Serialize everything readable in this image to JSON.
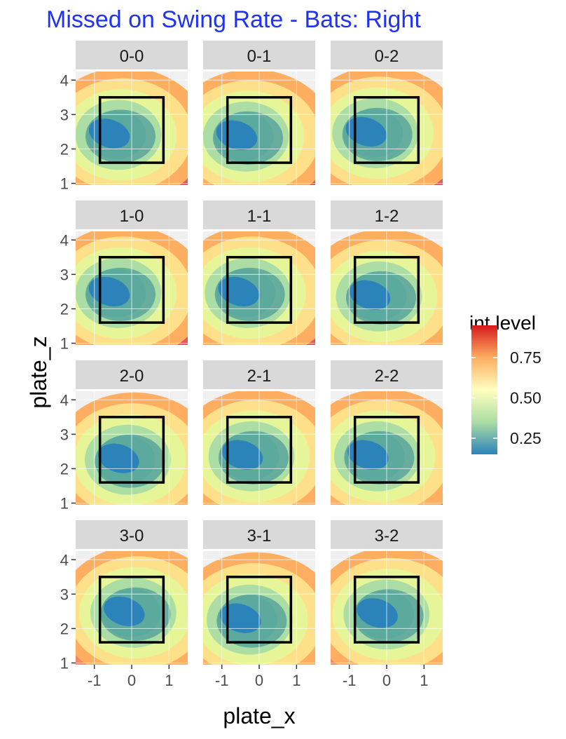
{
  "chart_data": {
    "type": "heatmap",
    "title": "Missed on Swing Rate - Bats: Right",
    "xlabel": "plate_x",
    "ylabel": "plate_z",
    "xlim": [
      -1.5,
      1.5
    ],
    "ylim": [
      0.95,
      4.25
    ],
    "x_ticks": [
      -1,
      0,
      1
    ],
    "y_ticks": [
      1,
      2,
      3,
      4
    ],
    "strike_zone": {
      "x": [
        -0.85,
        0.85
      ],
      "z": [
        1.6,
        3.5
      ]
    },
    "legend": {
      "title": "int.level",
      "position": "right",
      "range": [
        0.15,
        0.95
      ],
      "ticks": [
        0.25,
        0.5,
        0.75
      ],
      "tick_labels": [
        "0.25",
        "0.50",
        "0.75"
      ],
      "colors": [
        "#2b83ba",
        "#abdda4",
        "#ffffbf",
        "#fdae61",
        "#d7191c"
      ]
    },
    "facets": [
      {
        "label": "0-0",
        "hot_spot": {
          "x": -0.6,
          "z": 2.45
        }
      },
      {
        "label": "0-1",
        "hot_spot": {
          "x": -0.6,
          "z": 2.4
        }
      },
      {
        "label": "0-2",
        "hot_spot": {
          "x": -0.55,
          "z": 2.5
        }
      },
      {
        "label": "1-0",
        "hot_spot": {
          "x": -0.6,
          "z": 2.5
        }
      },
      {
        "label": "1-1",
        "hot_spot": {
          "x": -0.55,
          "z": 2.5
        }
      },
      {
        "label": "1-2",
        "hot_spot": {
          "x": -0.45,
          "z": 2.4
        }
      },
      {
        "label": "2-0",
        "hot_spot": {
          "x": -0.35,
          "z": 2.3
        }
      },
      {
        "label": "2-1",
        "hot_spot": {
          "x": -0.45,
          "z": 2.4
        }
      },
      {
        "label": "2-2",
        "hot_spot": {
          "x": -0.5,
          "z": 2.4
        }
      },
      {
        "label": "3-0",
        "hot_spot": {
          "x": -0.2,
          "z": 2.5
        }
      },
      {
        "label": "3-1",
        "hot_spot": {
          "x": -0.5,
          "z": 2.3
        }
      },
      {
        "label": "3-2",
        "hot_spot": {
          "x": -0.25,
          "z": 2.45
        }
      }
    ]
  }
}
